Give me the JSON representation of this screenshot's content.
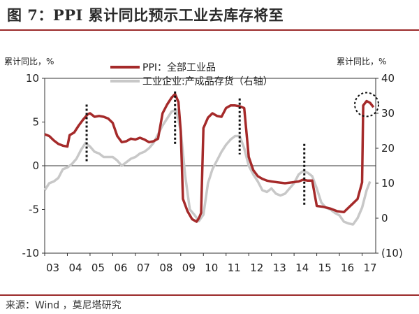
{
  "title": "图 7：PPI 累计同比预示工业去库存将至",
  "source": "来源：Wind ，莫尼塔研究",
  "chart_data": {
    "type": "line",
    "left_axis": {
      "label": "累计同比，%",
      "range": [
        -10,
        10
      ],
      "ticks": [
        "-10",
        "-5",
        "0",
        "5",
        "10"
      ]
    },
    "right_axis": {
      "label": "累计同比，%",
      "range": [
        -10,
        40
      ],
      "ticks": [
        "(10)",
        "0",
        "10",
        "20",
        "30",
        "40"
      ]
    },
    "x_ticks": [
      "03",
      "04",
      "05",
      "06",
      "07",
      "08",
      "09",
      "10",
      "11",
      "12",
      "13",
      "14",
      "15",
      "16",
      "17"
    ],
    "x_range": [
      2003,
      2017.6
    ],
    "zero_line": true,
    "colors": {
      "ppi": "#a52a2a",
      "inventory": "#c8c8c8",
      "marker": "#111111"
    },
    "series": [
      {
        "name": "PPI：全部工业品",
        "axis": "left",
        "points": [
          [
            2003.0,
            3.6
          ],
          [
            2003.2,
            3.4
          ],
          [
            2003.4,
            2.9
          ],
          [
            2003.6,
            2.5
          ],
          [
            2003.8,
            2.3
          ],
          [
            2004.0,
            2.2
          ],
          [
            2004.1,
            3.5
          ],
          [
            2004.3,
            3.8
          ],
          [
            2004.5,
            4.6
          ],
          [
            2004.7,
            5.3
          ],
          [
            2004.9,
            5.9
          ],
          [
            2005.0,
            6.0
          ],
          [
            2005.2,
            5.6
          ],
          [
            2005.4,
            5.7
          ],
          [
            2005.6,
            5.6
          ],
          [
            2005.8,
            5.4
          ],
          [
            2006.0,
            4.9
          ],
          [
            2006.2,
            3.4
          ],
          [
            2006.4,
            2.7
          ],
          [
            2006.6,
            2.8
          ],
          [
            2006.8,
            3.1
          ],
          [
            2007.0,
            3.0
          ],
          [
            2007.2,
            3.2
          ],
          [
            2007.4,
            3.0
          ],
          [
            2007.6,
            2.7
          ],
          [
            2007.8,
            2.8
          ],
          [
            2008.0,
            3.1
          ],
          [
            2008.2,
            6.0
          ],
          [
            2008.4,
            7.0
          ],
          [
            2008.6,
            7.8
          ],
          [
            2008.75,
            8.2
          ],
          [
            2008.9,
            7.3
          ],
          [
            2009.0,
            4.0
          ],
          [
            2009.1,
            -3.8
          ],
          [
            2009.3,
            -5.2
          ],
          [
            2009.5,
            -6.1
          ],
          [
            2009.7,
            -6.4
          ],
          [
            2009.8,
            -6.0
          ],
          [
            2009.9,
            -5.4
          ],
          [
            2010.0,
            4.3
          ],
          [
            2010.2,
            5.5
          ],
          [
            2010.4,
            6.0
          ],
          [
            2010.6,
            5.7
          ],
          [
            2010.8,
            5.6
          ],
          [
            2011.0,
            6.6
          ],
          [
            2011.2,
            6.9
          ],
          [
            2011.4,
            6.9
          ],
          [
            2011.6,
            6.8
          ],
          [
            2011.8,
            6.6
          ],
          [
            2012.0,
            1.0
          ],
          [
            2012.2,
            -0.5
          ],
          [
            2012.4,
            -1.2
          ],
          [
            2012.6,
            -1.5
          ],
          [
            2012.8,
            -1.7
          ],
          [
            2013.0,
            -1.8
          ],
          [
            2013.3,
            -1.9
          ],
          [
            2013.6,
            -2.0
          ],
          [
            2013.9,
            -1.9
          ],
          [
            2014.2,
            -1.8
          ],
          [
            2014.4,
            -1.6
          ],
          [
            2014.6,
            -1.7
          ],
          [
            2014.8,
            -1.7
          ],
          [
            2015.0,
            -4.6
          ],
          [
            2015.3,
            -4.7
          ],
          [
            2015.6,
            -4.9
          ],
          [
            2015.9,
            -5.2
          ],
          [
            2016.2,
            -5.3
          ],
          [
            2016.4,
            -4.8
          ],
          [
            2016.6,
            -4.3
          ],
          [
            2016.8,
            -3.8
          ],
          [
            2017.0,
            -1.9
          ],
          [
            2017.05,
            6.9
          ],
          [
            2017.2,
            7.4
          ],
          [
            2017.35,
            7.2
          ],
          [
            2017.5,
            6.7
          ]
        ]
      },
      {
        "name": "工业企业:产成品存货（右轴）",
        "axis": "right",
        "points": [
          [
            2003.0,
            8.0
          ],
          [
            2003.2,
            10.0
          ],
          [
            2003.4,
            10.5
          ],
          [
            2003.6,
            11.5
          ],
          [
            2003.8,
            14.0
          ],
          [
            2004.0,
            14.5
          ],
          [
            2004.2,
            15.5
          ],
          [
            2004.4,
            17.0
          ],
          [
            2004.6,
            19.5
          ],
          [
            2004.8,
            21.5
          ],
          [
            2005.0,
            20.5
          ],
          [
            2005.2,
            19.0
          ],
          [
            2005.4,
            18.5
          ],
          [
            2005.6,
            17.5
          ],
          [
            2005.8,
            17.5
          ],
          [
            2006.0,
            17.5
          ],
          [
            2006.2,
            16.5
          ],
          [
            2006.4,
            15.0
          ],
          [
            2006.6,
            16.0
          ],
          [
            2006.8,
            17.0
          ],
          [
            2007.0,
            17.5
          ],
          [
            2007.2,
            18.5
          ],
          [
            2007.4,
            19.0
          ],
          [
            2007.6,
            20.0
          ],
          [
            2007.8,
            21.5
          ],
          [
            2008.0,
            24.0
          ],
          [
            2008.2,
            26.5
          ],
          [
            2008.4,
            28.5
          ],
          [
            2008.6,
            30.5
          ],
          [
            2008.8,
            31.0
          ],
          [
            2009.0,
            25.0
          ],
          [
            2009.2,
            12.0
          ],
          [
            2009.4,
            2.5
          ],
          [
            2009.6,
            1.0
          ],
          [
            2009.8,
            -0.8
          ],
          [
            2010.0,
            1.0
          ],
          [
            2010.2,
            10.0
          ],
          [
            2010.4,
            14.0
          ],
          [
            2010.6,
            16.5
          ],
          [
            2010.8,
            19.0
          ],
          [
            2011.0,
            21.0
          ],
          [
            2011.2,
            22.5
          ],
          [
            2011.4,
            23.5
          ],
          [
            2011.6,
            23.5
          ],
          [
            2011.8,
            20.0
          ],
          [
            2012.0,
            15.0
          ],
          [
            2012.2,
            12.5
          ],
          [
            2012.4,
            10.5
          ],
          [
            2012.6,
            8.0
          ],
          [
            2012.8,
            7.5
          ],
          [
            2013.0,
            8.5
          ],
          [
            2013.2,
            7.0
          ],
          [
            2013.4,
            6.5
          ],
          [
            2013.6,
            7.0
          ],
          [
            2013.8,
            8.5
          ],
          [
            2014.0,
            10.0
          ],
          [
            2014.2,
            12.5
          ],
          [
            2014.4,
            13.5
          ],
          [
            2014.6,
            13.0
          ],
          [
            2014.8,
            12.0
          ],
          [
            2015.0,
            8.5
          ],
          [
            2015.2,
            4.5
          ],
          [
            2015.4,
            3.0
          ],
          [
            2015.6,
            2.5
          ],
          [
            2015.8,
            1.5
          ],
          [
            2016.0,
            0.8
          ],
          [
            2016.2,
            -1.0
          ],
          [
            2016.4,
            -1.5
          ],
          [
            2016.6,
            -1.8
          ],
          [
            2016.8,
            0.0
          ],
          [
            2017.0,
            3.0
          ],
          [
            2017.2,
            8.0
          ],
          [
            2017.35,
            10.5
          ]
        ]
      }
    ],
    "dotted_markers": [
      {
        "x": 2004.85,
        "y_top": 7.0,
        "y_bottom": 0.5
      },
      {
        "x": 2008.75,
        "y_top": 8.5,
        "y_bottom": 2.3
      },
      {
        "x": 2011.6,
        "y_top": 7.7,
        "y_bottom": 1.3
      },
      {
        "x": 2014.45,
        "y_top": 2.5,
        "y_bottom": -4.5
      }
    ],
    "highlight_circle": {
      "x": 2017.2,
      "y": 7.0
    }
  }
}
